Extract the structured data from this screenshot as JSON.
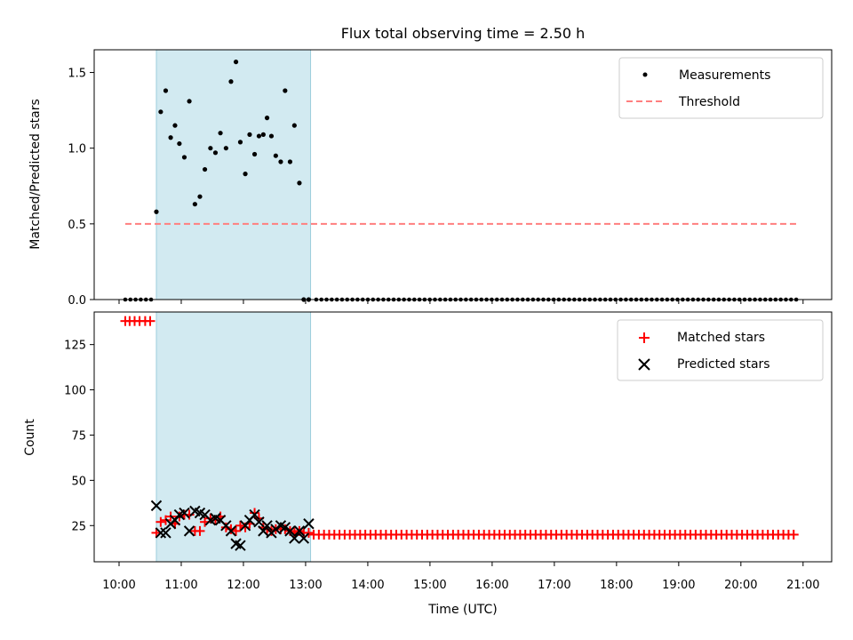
{
  "chart_data": {
    "type": "scatter",
    "title": "Flux total observing time = 2.50 h",
    "xlabel": "Time (UTC)",
    "x_domain": [
      9.6,
      21.46
    ],
    "x_ticks": [
      10,
      11,
      12,
      13,
      14,
      15,
      16,
      17,
      18,
      19,
      20,
      21
    ],
    "x_tick_labels": [
      "10:00",
      "11:00",
      "12:00",
      "13:00",
      "14:00",
      "15:00",
      "16:00",
      "17:00",
      "18:00",
      "19:00",
      "20:00",
      "21:00"
    ],
    "highlight_span": [
      10.6,
      13.08
    ],
    "colors": {
      "highlight": "#add8e6",
      "measurement": "#000000",
      "threshold": "#ff7f7f",
      "matched": "#ff0000",
      "predicted": "#000000"
    },
    "top": {
      "ylabel": "Matched/Predicted stars",
      "ylim": [
        0,
        1.65
      ],
      "y_ticks": [
        0.0,
        0.5,
        1.0,
        1.5
      ],
      "y_tick_labels": [
        "0.0",
        "0.5",
        "1.0",
        "1.5"
      ],
      "threshold": {
        "value": 0.5,
        "x_range": [
          10.1,
          20.93
        ]
      },
      "measurements": {
        "zero_x_range": [
          10.1,
          20.93
        ],
        "zero_step": 0.083,
        "active_x": [
          10.6,
          10.67,
          10.75,
          10.83,
          10.9,
          10.97,
          11.05,
          11.13,
          11.22,
          11.3,
          11.38,
          11.47,
          11.55,
          11.63,
          11.72,
          11.8,
          11.88,
          11.95,
          12.03,
          12.1,
          12.18,
          12.25,
          12.32,
          12.38,
          12.45,
          12.52,
          12.6,
          12.67,
          12.75,
          12.82,
          12.9,
          12.97,
          13.05
        ],
        "active_y": [
          0.58,
          1.24,
          1.38,
          1.07,
          1.15,
          1.03,
          0.94,
          1.31,
          0.63,
          0.68,
          0.86,
          1.0,
          0.97,
          1.1,
          1.0,
          1.44,
          1.57,
          1.04,
          0.83,
          1.09,
          0.96,
          1.08,
          1.09,
          1.2,
          1.08,
          0.95,
          0.91,
          1.38,
          0.91,
          1.15,
          0.77,
          0.0,
          0.0
        ]
      },
      "legend": [
        "Measurements",
        "Threshold"
      ]
    },
    "bottom": {
      "ylabel": "Count",
      "ylim": [
        5,
        143
      ],
      "y_ticks": [
        25,
        50,
        75,
        100,
        125
      ],
      "y_tick_labels": [
        "25",
        "50",
        "75",
        "100",
        "125"
      ],
      "matched_early": {
        "x": [
          10.1,
          10.17,
          10.25,
          10.33,
          10.42,
          10.5
        ],
        "y": [
          138,
          138,
          138,
          138,
          138,
          138
        ]
      },
      "matched_active": {
        "x": [
          10.6,
          10.67,
          10.75,
          10.83,
          10.9,
          10.97,
          11.05,
          11.13,
          11.22,
          11.3,
          11.38,
          11.47,
          11.55,
          11.63,
          11.72,
          11.8,
          11.88,
          11.95,
          12.03,
          12.1,
          12.18,
          12.25,
          12.32,
          12.38,
          12.45,
          12.52,
          12.6,
          12.67,
          12.75,
          12.82,
          12.9,
          12.97,
          13.05
        ],
        "y": [
          21,
          27,
          28,
          30,
          26,
          30,
          31,
          31,
          22,
          22,
          27,
          29,
          28,
          30,
          24,
          23,
          22,
          25,
          24,
          26,
          32,
          29,
          24,
          23,
          22,
          23,
          23,
          23,
          22,
          21,
          22,
          21,
          21
        ]
      },
      "matched_tail": {
        "x_range": [
          13.13,
          20.93
        ],
        "step": 0.083,
        "value": 20
      },
      "predicted": {
        "x": [
          10.6,
          10.67,
          10.75,
          10.83,
          10.9,
          10.97,
          11.05,
          11.13,
          11.22,
          11.3,
          11.38,
          11.47,
          11.55,
          11.63,
          11.72,
          11.8,
          11.88,
          11.95,
          12.03,
          12.1,
          12.18,
          12.25,
          12.32,
          12.38,
          12.45,
          12.52,
          12.6,
          12.67,
          12.75,
          12.82,
          12.9,
          12.97,
          13.05
        ],
        "y": [
          36,
          21,
          21,
          26,
          28,
          31,
          32,
          22,
          33,
          32,
          31,
          28,
          29,
          28,
          25,
          22,
          15,
          14,
          25,
          28,
          31,
          27,
          22,
          25,
          21,
          23,
          25,
          24,
          22,
          18,
          22,
          18,
          26
        ]
      },
      "legend": [
        "Matched stars",
        "Predicted stars"
      ]
    }
  }
}
